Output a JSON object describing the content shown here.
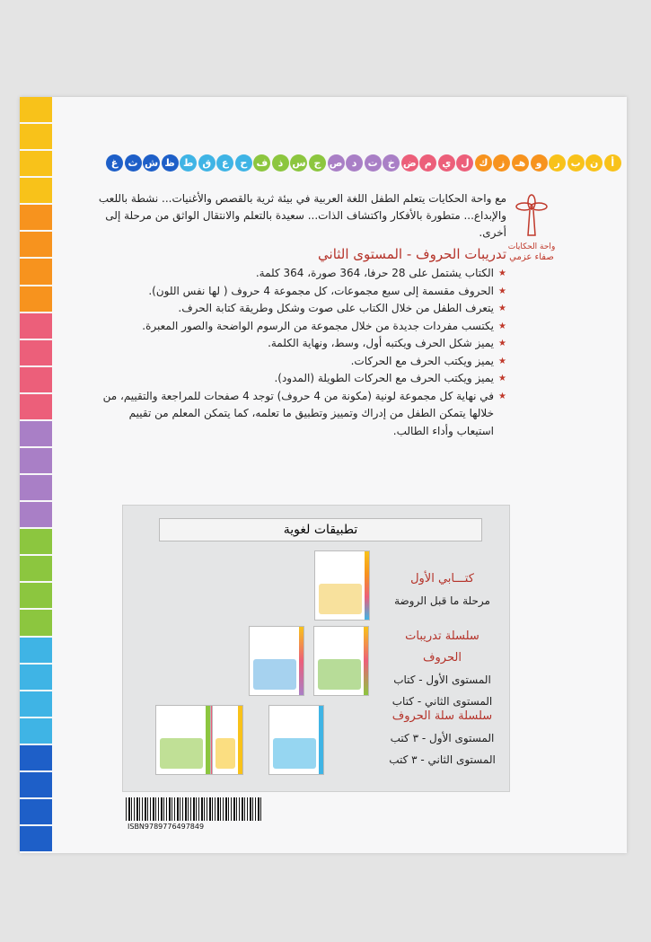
{
  "strip_colors": [
    "#f8c21a",
    "#f7931e",
    "#ec5f7a",
    "#a97fc6",
    "#8cc63f",
    "#3fb4e5",
    "#1e5fc8"
  ],
  "letters": [
    "أ",
    "ن",
    "ب",
    "ر",
    "و",
    "هـ",
    "ز",
    "ك",
    "ل",
    "ي",
    "م",
    "ض",
    "خ",
    "ت",
    "د",
    "ص",
    "ج",
    "س",
    "ذ",
    "ف",
    "ح",
    "ع",
    "ق",
    "ط",
    "ظ",
    "ش",
    "ث",
    "غ"
  ],
  "logo": {
    "line1": "واحة الحكايات",
    "line2": "صفاء عزمي"
  },
  "intro": "مع واحة الحكايات يتعلم الطفل اللغة العربية في بيئة ثرية بالقصص والأغنيات... نشطة باللعب والإبداع... متطورة بالأفكار واكتشاف الذات... سعيدة بالتعلم والانتقال الواثق من مرحلة إلى أخرى.",
  "subtitle": "تدريبات الحروف - المستوى الثاني",
  "bullets": [
    "الكتاب يشتمل على 28 حرفا، 364 صورة، 364 كلمة.",
    "الحروف مقسمة إلى سبع مجموعات، كل مجموعة 4 حروف ( لها نفس اللون).",
    "يتعرف الطفل من خلال الكتاب على صوت وشكل وطريقة كتابة الحرف.",
    "يكتسب مفردات جديدة من خلال مجموعة من الرسوم الواضحة والصور المعبرة.",
    "يميز شكل الحرف ويكتبه أول، وسط، ونهاية الكلمة.",
    "يميز ويكتب الحرف مع الحركات.",
    "يميز ويكتب الحرف مع الحركات الطويلة (المدود).",
    "في نهاية كل مجموعة لونية (مكونة من 4 حروف) توجد 4 صفحات للمراجعة والتقييم، من خلالها يتمكن الطفل من إدراك وتمييز وتطبيق ما تعلمه، كما يتمكن المعلم من تقييم استيعاب وأداء الطالب."
  ],
  "panel": {
    "title": "تطبيقات لغوية",
    "groups": [
      {
        "heading": "كتـــابي الأول",
        "lines": [
          "مرحلة ما قبل الروضة"
        ]
      },
      {
        "heading": "سلسلة تدريبات الحروف",
        "lines": [
          "المستوى الأول - كتاب",
          "المستوى الثاني - كتاب"
        ]
      },
      {
        "heading": "سلسلة سلة الحروف",
        "lines": [
          "المستوى الأول - ٣ كتب",
          "المستوى الثاني - ٣ كتب"
        ]
      }
    ]
  },
  "isbn": "ISBN9789776497849"
}
